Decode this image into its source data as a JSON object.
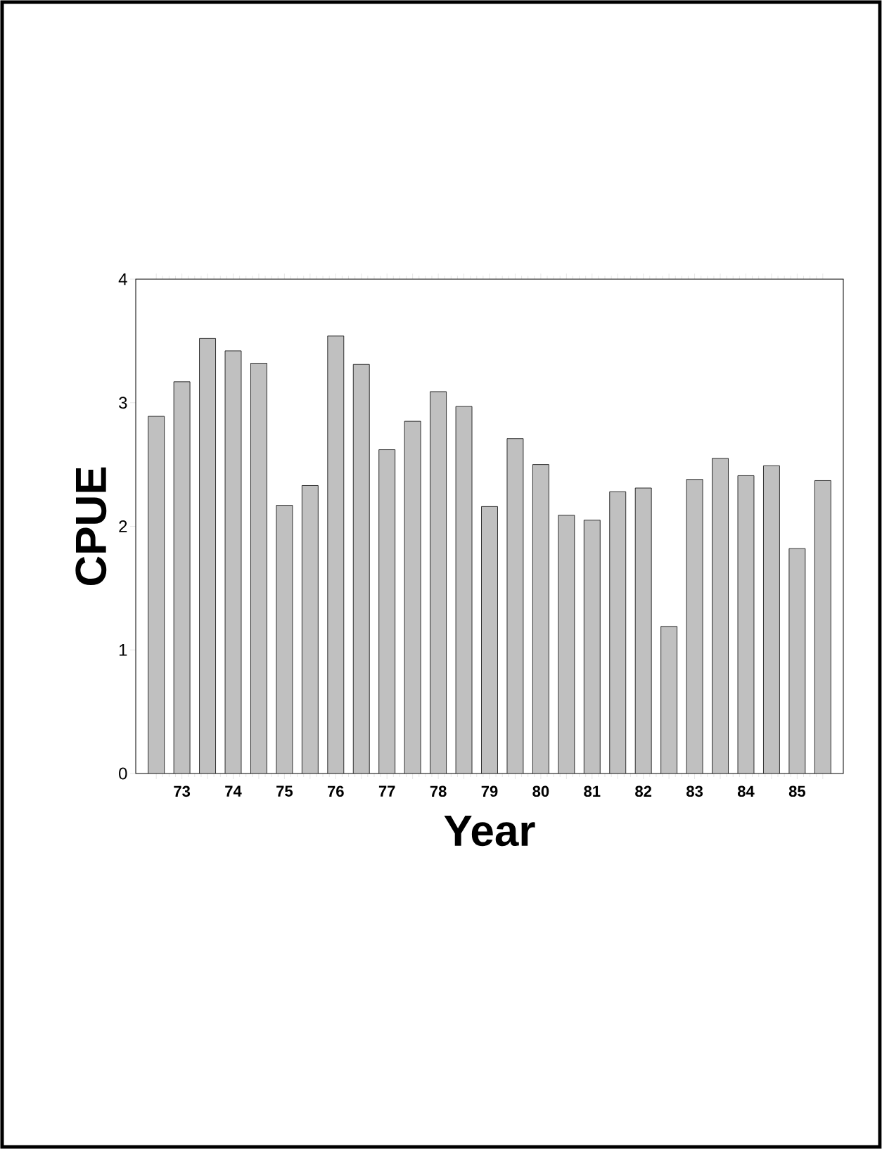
{
  "chart_data": {
    "type": "bar",
    "xlabel": "Year",
    "ylabel": "CPUE",
    "categories": [
      null,
      "73",
      null,
      "74",
      null,
      "75",
      null,
      "76",
      null,
      "77",
      null,
      "78",
      null,
      "79",
      null,
      "80",
      null,
      "81",
      null,
      "82",
      null,
      "83",
      null,
      "84",
      null,
      "85",
      null
    ],
    "values": [
      2.89,
      3.17,
      3.52,
      3.42,
      3.32,
      2.17,
      2.33,
      3.54,
      3.31,
      2.62,
      2.85,
      3.09,
      2.97,
      2.16,
      2.71,
      2.5,
      2.09,
      2.05,
      2.28,
      2.31,
      1.19,
      2.38,
      2.55,
      2.41,
      2.49,
      1.82,
      2.37
    ],
    "color": "#c0c0c0",
    "ylim": [
      0,
      4
    ],
    "yticks": [
      0,
      1,
      2,
      3,
      4
    ]
  }
}
